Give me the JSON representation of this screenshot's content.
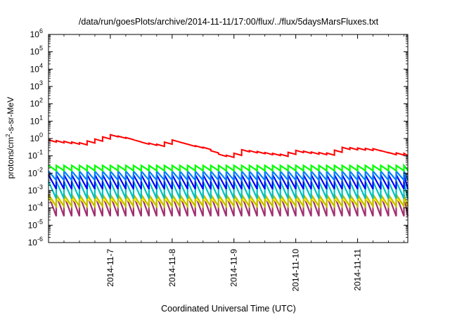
{
  "chart_data": {
    "type": "line",
    "title": "/data/run/goesPlots/archive/2014-11-11/17:00/flux/../flux/5daysMarsFluxes.txt",
    "xlabel": "Coordinated Universal Time (UTC)",
    "ylabel": "protons/cm²-s-sr-MeV",
    "xlim": [
      "2014-11-06 00:00",
      "2014-11-11 19:30"
    ],
    "x_ticks": [
      "2014-11-7",
      "2014-11-8",
      "2014-11-9",
      "2014-11-10",
      "2014-11-11"
    ],
    "y_scale": "log",
    "ylim": [
      1e-06,
      1000000
    ],
    "y_tick_bases": [
      "10",
      "10",
      "10",
      "10",
      "10",
      "10",
      "10",
      "10",
      "10",
      "10",
      "10",
      "10",
      "10"
    ],
    "y_tick_exponents": [
      "-6",
      "-5",
      "-4",
      "-3",
      "-2",
      "-1",
      "0",
      "1",
      "2",
      "3",
      "4",
      "5",
      "6"
    ],
    "grid": false,
    "legend": "none",
    "series": [
      {
        "color": "#ff0000",
        "style": "sawtooth",
        "period_hours": 3.0,
        "base_points": [
          {
            "x": "2014-11-06 00:00",
            "y": 0.8
          },
          {
            "x": "2014-11-06 12:00",
            "y": 0.55
          },
          {
            "x": "2014-11-06 18:00",
            "y": 0.9
          },
          {
            "x": "2014-11-07 00:00",
            "y": 1.6
          },
          {
            "x": "2014-11-07 06:00",
            "y": 1.1
          },
          {
            "x": "2014-11-07 12:00",
            "y": 0.6
          },
          {
            "x": "2014-11-07 18:00",
            "y": 0.45
          },
          {
            "x": "2014-11-08 00:00",
            "y": 0.8
          },
          {
            "x": "2014-11-08 06:00",
            "y": 0.45
          },
          {
            "x": "2014-11-08 12:00",
            "y": 0.3
          },
          {
            "x": "2014-11-08 18:00",
            "y": 0.12
          },
          {
            "x": "2014-11-08 22:00",
            "y": 0.1
          },
          {
            "x": "2014-11-09 03:00",
            "y": 0.22
          },
          {
            "x": "2014-11-09 12:00",
            "y": 0.15
          },
          {
            "x": "2014-11-09 18:00",
            "y": 0.12
          },
          {
            "x": "2014-11-10 00:00",
            "y": 0.2
          },
          {
            "x": "2014-11-10 06:00",
            "y": 0.16
          },
          {
            "x": "2014-11-10 12:00",
            "y": 0.14
          },
          {
            "x": "2014-11-10 18:00",
            "y": 0.3
          },
          {
            "x": "2014-11-11 06:00",
            "y": 0.25
          },
          {
            "x": "2014-11-11 12:00",
            "y": 0.15
          },
          {
            "x": "2014-11-11 19:30",
            "y": 0.13
          }
        ],
        "drop_factor": 0.75
      },
      {
        "color": "#00ff00",
        "style": "sawtooth",
        "period_hours": 3.0,
        "base_points": [
          {
            "x": "2014-11-06 00:00",
            "y": 0.022
          },
          {
            "x": "2014-11-11 19:30",
            "y": 0.022
          }
        ],
        "drop_factor": 0.5
      },
      {
        "color": "#0080ff",
        "style": "sawtooth",
        "period_hours": 3.0,
        "base_points": [
          {
            "x": "2014-11-06 00:00",
            "y": 0.008
          },
          {
            "x": "2014-11-11 19:30",
            "y": 0.008
          }
        ],
        "drop_factor": 0.3
      },
      {
        "color": "#0000ff",
        "style": "sawtooth",
        "period_hours": 3.0,
        "base_points": [
          {
            "x": "2014-11-06 00:00",
            "y": 0.0035
          },
          {
            "x": "2014-11-11 19:30",
            "y": 0.0035
          }
        ],
        "drop_factor": 0.15
      },
      {
        "color": "#00c0c0",
        "style": "sawtooth",
        "period_hours": 3.0,
        "base_points": [
          {
            "x": "2014-11-06 00:00",
            "y": 0.0012
          },
          {
            "x": "2014-11-11 19:30",
            "y": 0.0012
          }
        ],
        "drop_factor": 0.1
      },
      {
        "color": "#c0c000",
        "style": "sawtooth",
        "period_hours": 3.0,
        "base_points": [
          {
            "x": "2014-11-06 00:00",
            "y": 0.0003
          },
          {
            "x": "2014-11-11 19:30",
            "y": 0.0003
          }
        ],
        "drop_factor": 0.2
      },
      {
        "color": "#ffff00",
        "style": "sawtooth",
        "period_hours": 3.0,
        "base_points": [
          {
            "x": "2014-11-06 00:00",
            "y": 0.00025
          },
          {
            "x": "2014-11-11 19:30",
            "y": 0.00025
          }
        ],
        "drop_factor": 0.35
      },
      {
        "color": "#a03070",
        "style": "sawtooth",
        "period_hours": 3.0,
        "base_points": [
          {
            "x": "2014-11-06 00:00",
            "y": 0.00015
          },
          {
            "x": "2014-11-11 19:30",
            "y": 0.00015
          }
        ],
        "drop_factor": 0.06
      }
    ]
  }
}
